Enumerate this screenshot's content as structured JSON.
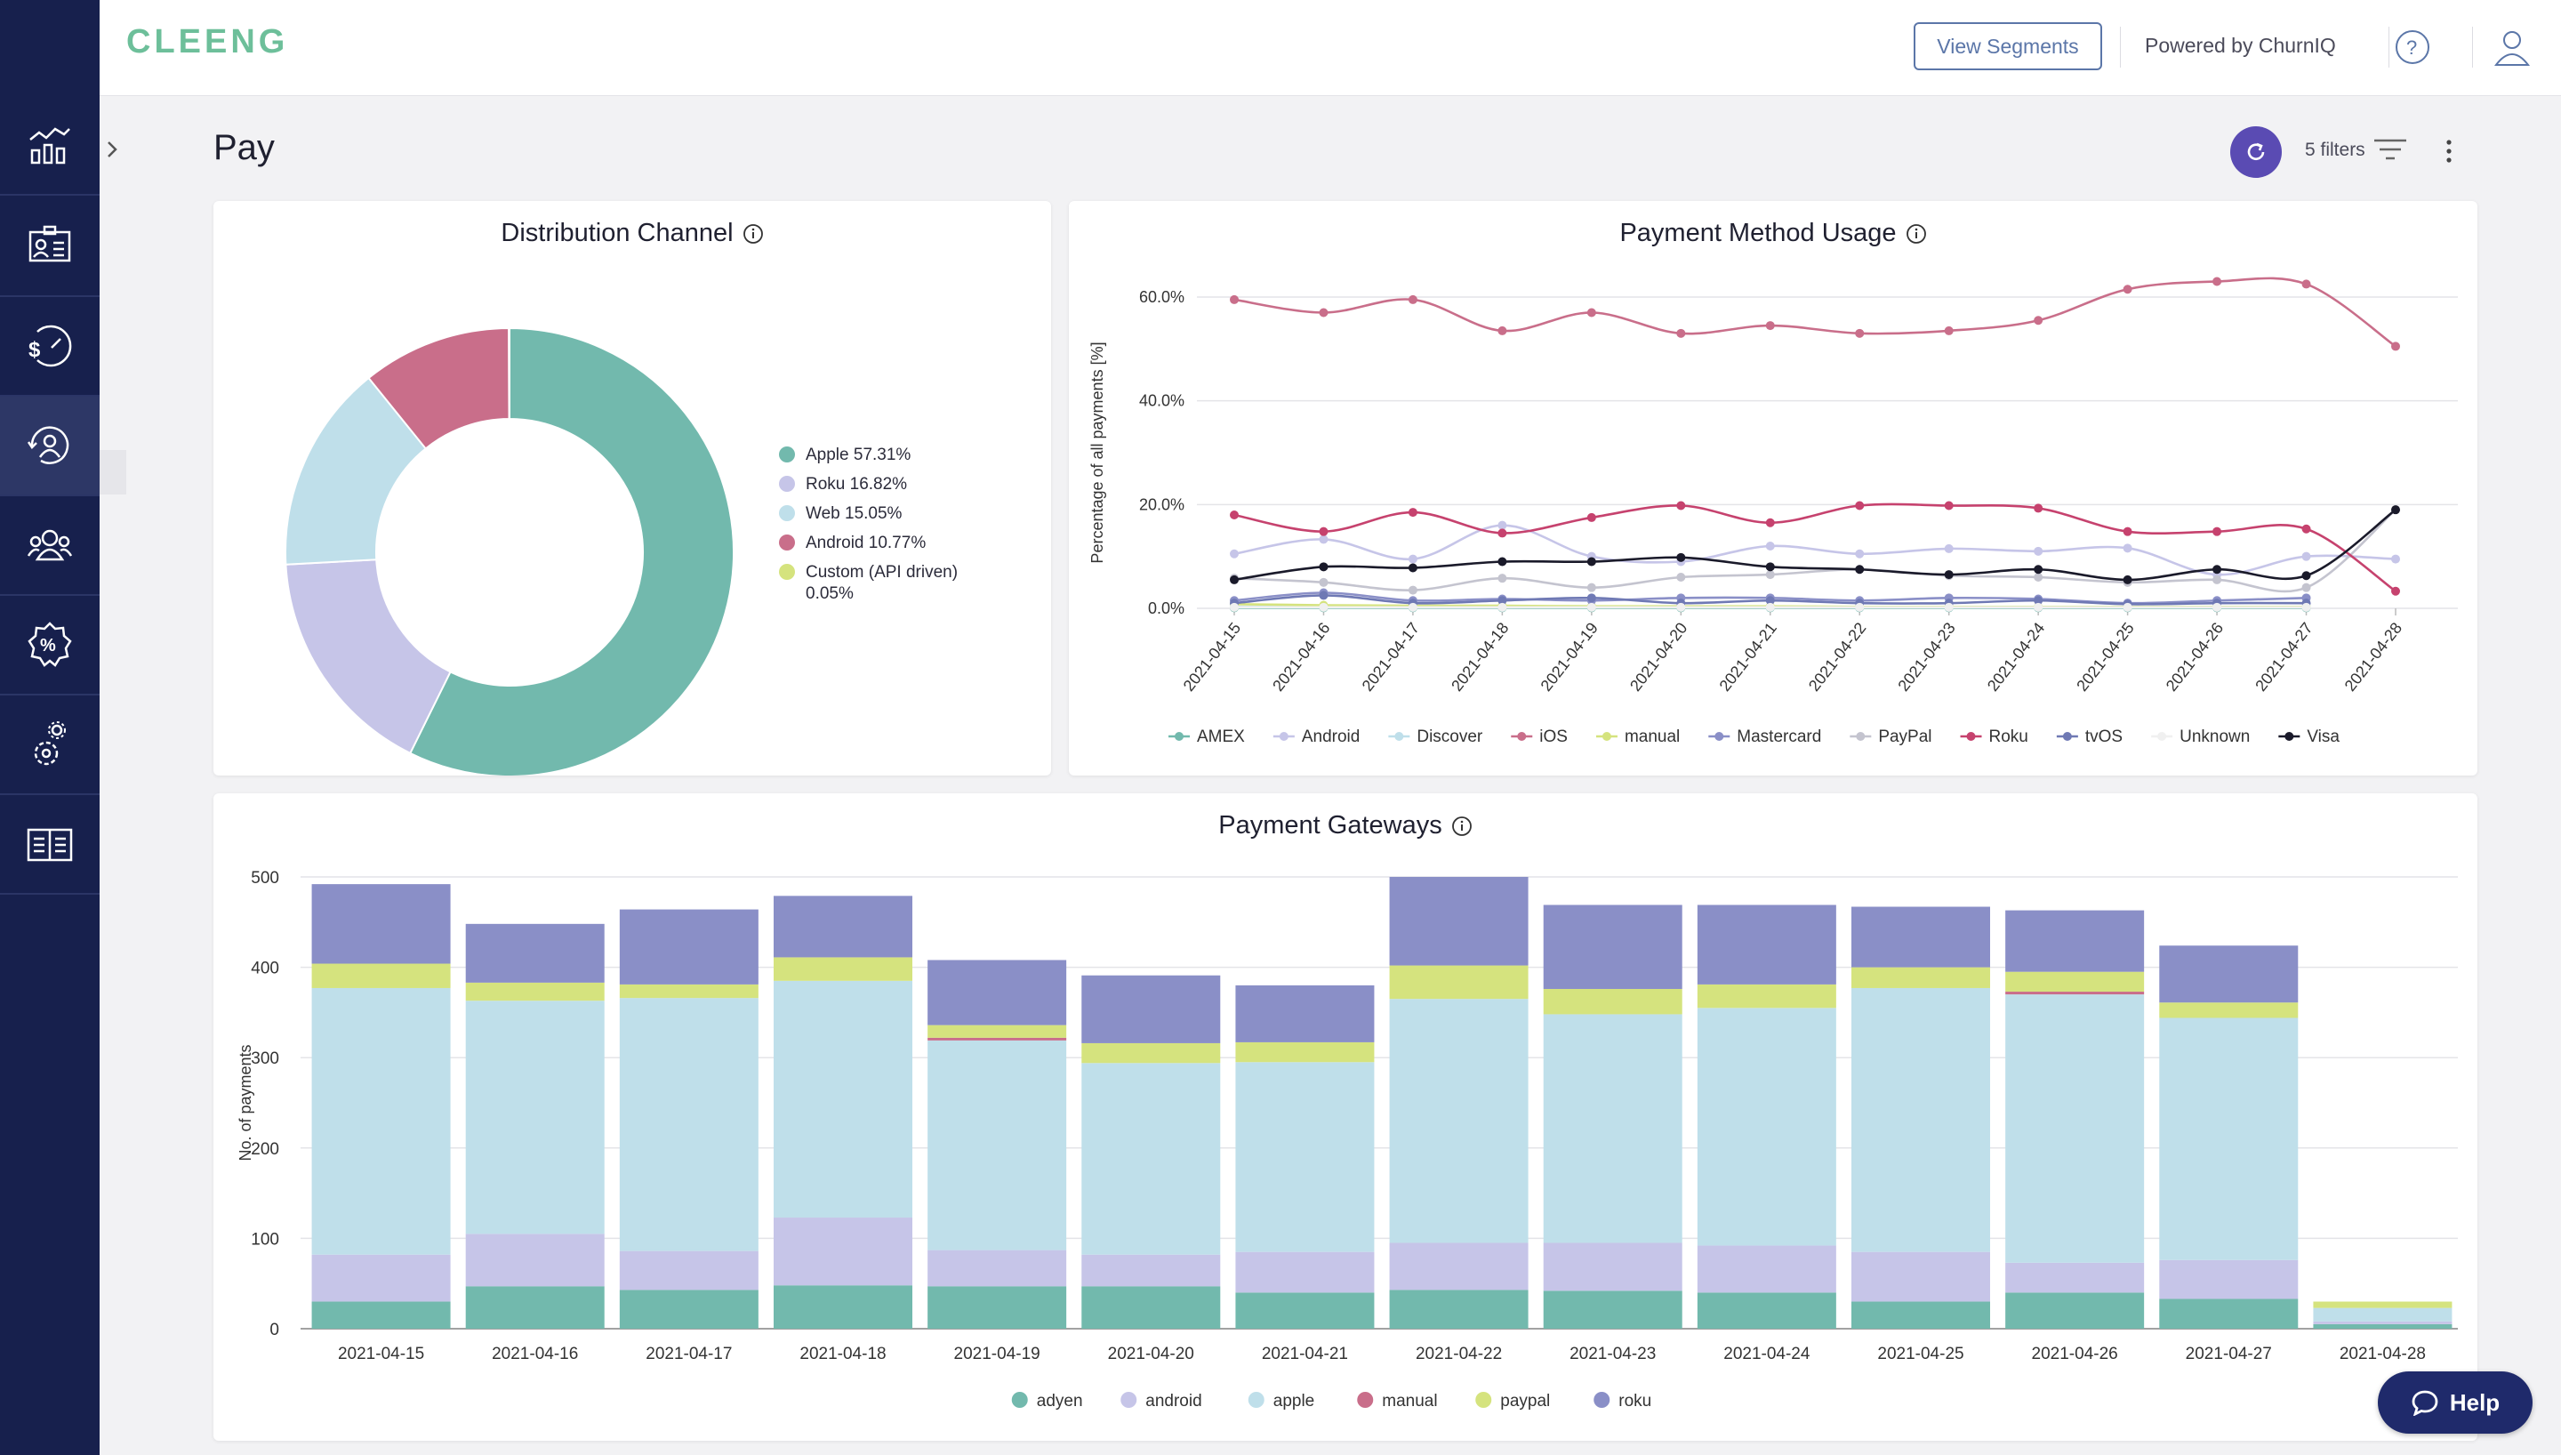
{
  "app": {
    "logo_text": "CLEENG",
    "header": {
      "segments_button": "View Segments",
      "powered_by": "Powered by ChurnIQ"
    },
    "sidebar": {
      "items": [
        {
          "name": "analytics-dashboard",
          "icon": "chart-icon",
          "active": false
        },
        {
          "name": "customer-profile",
          "icon": "id-card-icon",
          "active": false
        },
        {
          "name": "revenue",
          "icon": "dollar-gauge-icon",
          "active": false
        },
        {
          "name": "retention",
          "icon": "user-cycle-icon",
          "active": true
        },
        {
          "name": "audience",
          "icon": "users-icon",
          "active": false
        },
        {
          "name": "offers",
          "icon": "percent-badge-icon",
          "active": false
        },
        {
          "name": "settings",
          "icon": "gear-user-icon",
          "active": false
        },
        {
          "name": "documentation",
          "icon": "book-icon",
          "active": false
        }
      ]
    },
    "page": {
      "title": "Pay",
      "filters_label": "5 filters"
    },
    "help_button": "Help",
    "colors": {
      "sidebar": "#17204d",
      "accent": "#5a4bb3",
      "adyen": "#72b9ad",
      "android": "#c6c5e8",
      "apple": "#bfdfea",
      "manual": "#c96e8a",
      "paypal": "#d5e37e",
      "roku": "#8a8fc7"
    }
  },
  "chart_data": [
    {
      "type": "pie",
      "title": "Distribution Channel",
      "donut": true,
      "legend_position": "right",
      "slices": [
        {
          "label": "Apple",
          "value": 57.31,
          "legend": "Apple 57.31%",
          "color": "#72b9ad"
        },
        {
          "label": "Roku",
          "value": 16.82,
          "legend": "Roku 16.82%",
          "color": "#c6c5e8"
        },
        {
          "label": "Web",
          "value": 15.05,
          "legend": "Web 15.05%",
          "color": "#bfdfea"
        },
        {
          "label": "Android",
          "value": 10.77,
          "legend": "Android 10.77%",
          "color": "#c96e8a"
        },
        {
          "label": "Custom (API driven)",
          "value": 0.05,
          "legend": "Custom (API driven) 0.05%",
          "color": "#d5e37e"
        }
      ]
    },
    {
      "type": "line",
      "title": "Payment Method Usage",
      "ylabel": "Percentage of all payments [%]",
      "xlabel": "",
      "ylim": [
        0,
        60
      ],
      "yticks": [
        "0.0%",
        "20.0%",
        "40.0%",
        "60.0%"
      ],
      "legend_position": "bottom",
      "categories": [
        "2021-04-15",
        "2021-04-16",
        "2021-04-17",
        "2021-04-18",
        "2021-04-19",
        "2021-04-20",
        "2021-04-21",
        "2021-04-22",
        "2021-04-23",
        "2021-04-24",
        "2021-04-25",
        "2021-04-26",
        "2021-04-27",
        "2021-04-28"
      ],
      "series": [
        {
          "name": "AMEX",
          "color": "#72b9ad",
          "values": [
            0.1,
            0.1,
            0.1,
            0.1,
            0.1,
            0.1,
            0.1,
            0.1,
            0.1,
            0.1,
            0.1,
            0.1,
            0.1,
            null
          ]
        },
        {
          "name": "Android",
          "color": "#c6c5e8",
          "values": [
            10.5,
            13.3,
            9.5,
            16,
            10,
            9,
            12,
            10.5,
            11.5,
            11,
            11.6,
            6.5,
            10,
            9.5
          ]
        },
        {
          "name": "Discover",
          "color": "#bfdfea",
          "values": [
            0.3,
            0.3,
            0.2,
            0.2,
            0.3,
            0.3,
            0.2,
            0.2,
            0.2,
            0.2,
            0.2,
            0.2,
            0.2,
            null
          ]
        },
        {
          "name": "iOS",
          "color": "#c96e8a",
          "values": [
            59.5,
            57,
            59.5,
            53.5,
            57,
            53,
            54.5,
            53,
            53.5,
            55.5,
            61.5,
            63,
            62.5,
            50.5
          ]
        },
        {
          "name": "manual",
          "color": "#d5e37e",
          "values": [
            0.8,
            0.6,
            0.5,
            0.5,
            0.4,
            0.4,
            0.4,
            0.3,
            0.3,
            0.3,
            0.3,
            0.3,
            0.3,
            null
          ]
        },
        {
          "name": "Mastercard",
          "color": "#8a8fc7",
          "values": [
            1.5,
            3,
            1.5,
            1.8,
            1.5,
            2,
            2,
            1.5,
            2,
            1.8,
            1,
            1.5,
            2,
            null
          ]
        },
        {
          "name": "PayPal",
          "color": "#c4c4cf",
          "values": [
            5.8,
            5,
            3.5,
            5.8,
            4,
            6,
            6.5,
            7.5,
            6.3,
            6,
            5,
            5.5,
            4,
            19
          ]
        },
        {
          "name": "Roku",
          "color": "#c6426e",
          "values": [
            18,
            14.8,
            18.5,
            14.5,
            17.5,
            19.8,
            16.5,
            19.8,
            19.8,
            19.3,
            14.8,
            14.8,
            15.3,
            3.3
          ]
        },
        {
          "name": "tvOS",
          "color": "#6f79b4",
          "values": [
            1,
            2.5,
            1,
            1.5,
            2,
            1,
            1.5,
            1,
            1,
            1.5,
            0.8,
            1,
            1,
            null
          ]
        },
        {
          "name": "Unknown",
          "color": "#f0f0f0",
          "values": [
            0.2,
            0.2,
            0.2,
            0.2,
            0.2,
            0.2,
            0.2,
            0.2,
            0.2,
            0.2,
            0.2,
            0.2,
            0.2,
            null
          ]
        },
        {
          "name": "Visa",
          "color": "#1a1a2a",
          "values": [
            5.5,
            8,
            7.8,
            9,
            9,
            9.8,
            8,
            7.5,
            6.5,
            7.5,
            5.5,
            7.5,
            6.3,
            19
          ]
        }
      ]
    },
    {
      "type": "bar",
      "stacked": true,
      "title": "Payment Gateways",
      "ylabel": "No. of payments",
      "xlabel": "",
      "ylim": [
        0,
        500
      ],
      "yticks": [
        0,
        100,
        200,
        300,
        400,
        500
      ],
      "legend_position": "bottom",
      "categories": [
        "2021-04-15",
        "2021-04-16",
        "2021-04-17",
        "2021-04-18",
        "2021-04-19",
        "2021-04-20",
        "2021-04-21",
        "2021-04-22",
        "2021-04-23",
        "2021-04-24",
        "2021-04-25",
        "2021-04-26",
        "2021-04-27",
        "2021-04-28"
      ],
      "series": [
        {
          "name": "adyen",
          "color": "#72b9ad",
          "values": [
            30,
            47,
            43,
            48,
            47,
            47,
            40,
            43,
            42,
            40,
            30,
            40,
            33,
            5
          ]
        },
        {
          "name": "android",
          "color": "#c6c5e8",
          "values": [
            52,
            58,
            43,
            75,
            40,
            35,
            45,
            52,
            53,
            52,
            55,
            33,
            43,
            3
          ]
        },
        {
          "name": "apple",
          "color": "#bfdfea",
          "values": [
            295,
            258,
            280,
            262,
            232,
            212,
            210,
            270,
            253,
            263,
            292,
            297,
            268,
            15
          ]
        },
        {
          "name": "manual",
          "color": "#c96e8a",
          "values": [
            0,
            0,
            0,
            0,
            3,
            0,
            0,
            0,
            0,
            0,
            0,
            3,
            0,
            0
          ]
        },
        {
          "name": "paypal",
          "color": "#d5e37e",
          "values": [
            27,
            20,
            15,
            26,
            14,
            22,
            22,
            37,
            28,
            26,
            23,
            22,
            17,
            7
          ]
        },
        {
          "name": "roku",
          "color": "#8a8fc7",
          "values": [
            88,
            65,
            83,
            68,
            72,
            75,
            63,
            98,
            93,
            88,
            67,
            68,
            63,
            0
          ]
        }
      ]
    }
  ]
}
